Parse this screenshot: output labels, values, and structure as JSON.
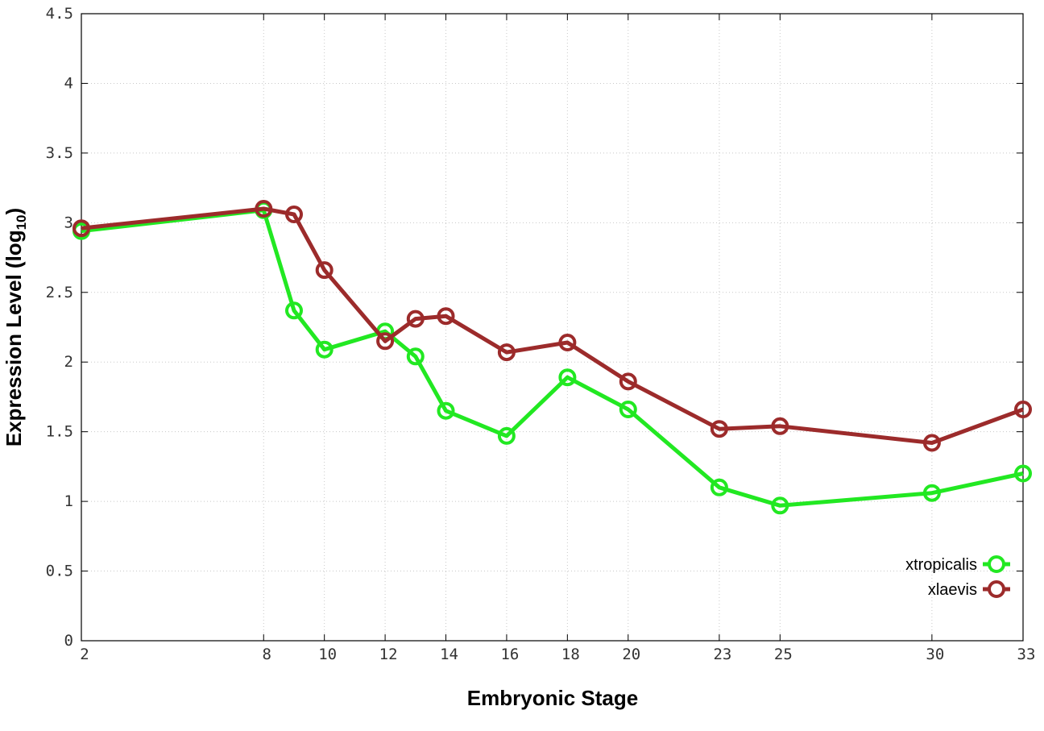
{
  "chart_data": {
    "type": "line",
    "xlabel": "Embryonic Stage",
    "ylabel_main": "Expression Level (log",
    "ylabel_sub": "10",
    "ylabel_close": ")",
    "ylim": [
      0,
      4.5
    ],
    "xlim": [
      2,
      33
    ],
    "yticks": [
      0,
      0.5,
      1,
      1.5,
      2,
      2.5,
      3,
      3.5,
      4,
      4.5
    ],
    "ytick_labels": [
      "0",
      "0.5",
      "1",
      "1.5",
      "2",
      "2.5",
      "3",
      "3.5",
      "4",
      "4.5"
    ],
    "xticks": [
      2,
      8,
      10,
      12,
      14,
      16,
      18,
      20,
      23,
      25,
      30,
      33
    ],
    "xtick_labels": [
      "2",
      "8",
      "10",
      "12",
      "14",
      "16",
      "18",
      "20",
      "23",
      "25",
      "30",
      "33"
    ],
    "x_stages": [
      2,
      8,
      9,
      10,
      12,
      13,
      14,
      16,
      18,
      20,
      23,
      25,
      30,
      33
    ],
    "grid": true,
    "legend_position": "bottom-right",
    "series": [
      {
        "name": "xtropicalis",
        "color": "#22e822",
        "x": [
          2,
          8,
          9,
          10,
          12,
          13,
          14,
          16,
          18,
          20,
          23,
          25,
          30,
          33
        ],
        "values": [
          2.94,
          3.09,
          2.37,
          2.09,
          2.22,
          2.04,
          1.65,
          1.47,
          1.89,
          1.66,
          1.1,
          0.97,
          1.06,
          1.2
        ]
      },
      {
        "name": "xlaevis",
        "color": "#9c2b2b",
        "x": [
          2,
          8,
          9,
          10,
          12,
          13,
          14,
          16,
          18,
          20,
          23,
          25,
          30,
          33
        ],
        "values": [
          2.96,
          3.1,
          3.06,
          2.66,
          2.15,
          2.31,
          2.33,
          2.07,
          2.14,
          1.86,
          1.52,
          1.54,
          1.42,
          1.66
        ]
      }
    ]
  }
}
